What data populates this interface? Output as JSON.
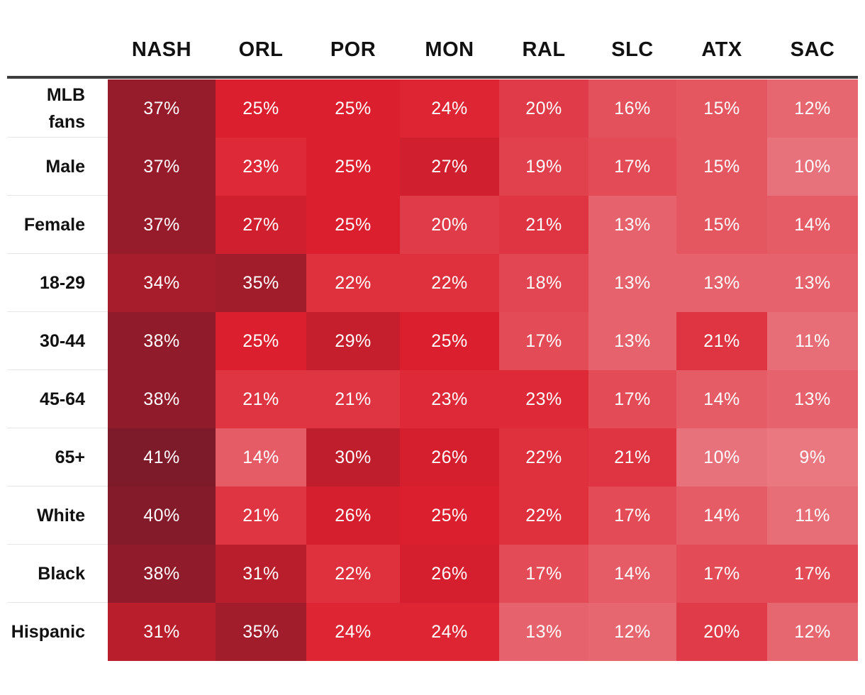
{
  "chart_data": {
    "type": "heatmap",
    "columns": [
      "NASH",
      "ORL",
      "POR",
      "MON",
      "RAL",
      "SLC",
      "ATX",
      "SAC"
    ],
    "rows": [
      {
        "label": "MLB fans",
        "label_lines": [
          "MLB",
          "fans"
        ],
        "values": [
          37,
          25,
          25,
          24,
          20,
          16,
          15,
          12
        ]
      },
      {
        "label": "Male",
        "label_lines": [
          "Male"
        ],
        "values": [
          37,
          23,
          25,
          27,
          19,
          17,
          15,
          10
        ]
      },
      {
        "label": "Female",
        "label_lines": [
          "Female"
        ],
        "values": [
          37,
          27,
          25,
          20,
          21,
          13,
          15,
          14
        ]
      },
      {
        "label": "18-29",
        "label_lines": [
          "18-29"
        ],
        "values": [
          34,
          35,
          22,
          22,
          18,
          13,
          13,
          13
        ]
      },
      {
        "label": "30-44",
        "label_lines": [
          "30-44"
        ],
        "values": [
          38,
          25,
          29,
          25,
          17,
          13,
          21,
          11
        ]
      },
      {
        "label": "45-64",
        "label_lines": [
          "45-64"
        ],
        "values": [
          38,
          21,
          21,
          23,
          23,
          17,
          14,
          13
        ]
      },
      {
        "label": "65+",
        "label_lines": [
          "65+"
        ],
        "values": [
          41,
          14,
          30,
          26,
          22,
          21,
          10,
          9
        ]
      },
      {
        "label": "White",
        "label_lines": [
          "White"
        ],
        "values": [
          40,
          21,
          26,
          25,
          22,
          17,
          14,
          11
        ]
      },
      {
        "label": "Black",
        "label_lines": [
          "Black"
        ],
        "values": [
          38,
          31,
          22,
          26,
          17,
          14,
          17,
          17
        ]
      },
      {
        "label": "Hispanic",
        "label_lines": [
          "Hispanic"
        ],
        "values": [
          31,
          35,
          24,
          24,
          13,
          12,
          20,
          12
        ]
      }
    ],
    "value_suffix": "%",
    "color_scale": {
      "stops": [
        {
          "value": 9,
          "color": "#e97880"
        },
        {
          "value": 25,
          "color": "#dc1f2e"
        },
        {
          "value": 41,
          "color": "#7e1b2a"
        }
      ]
    }
  }
}
